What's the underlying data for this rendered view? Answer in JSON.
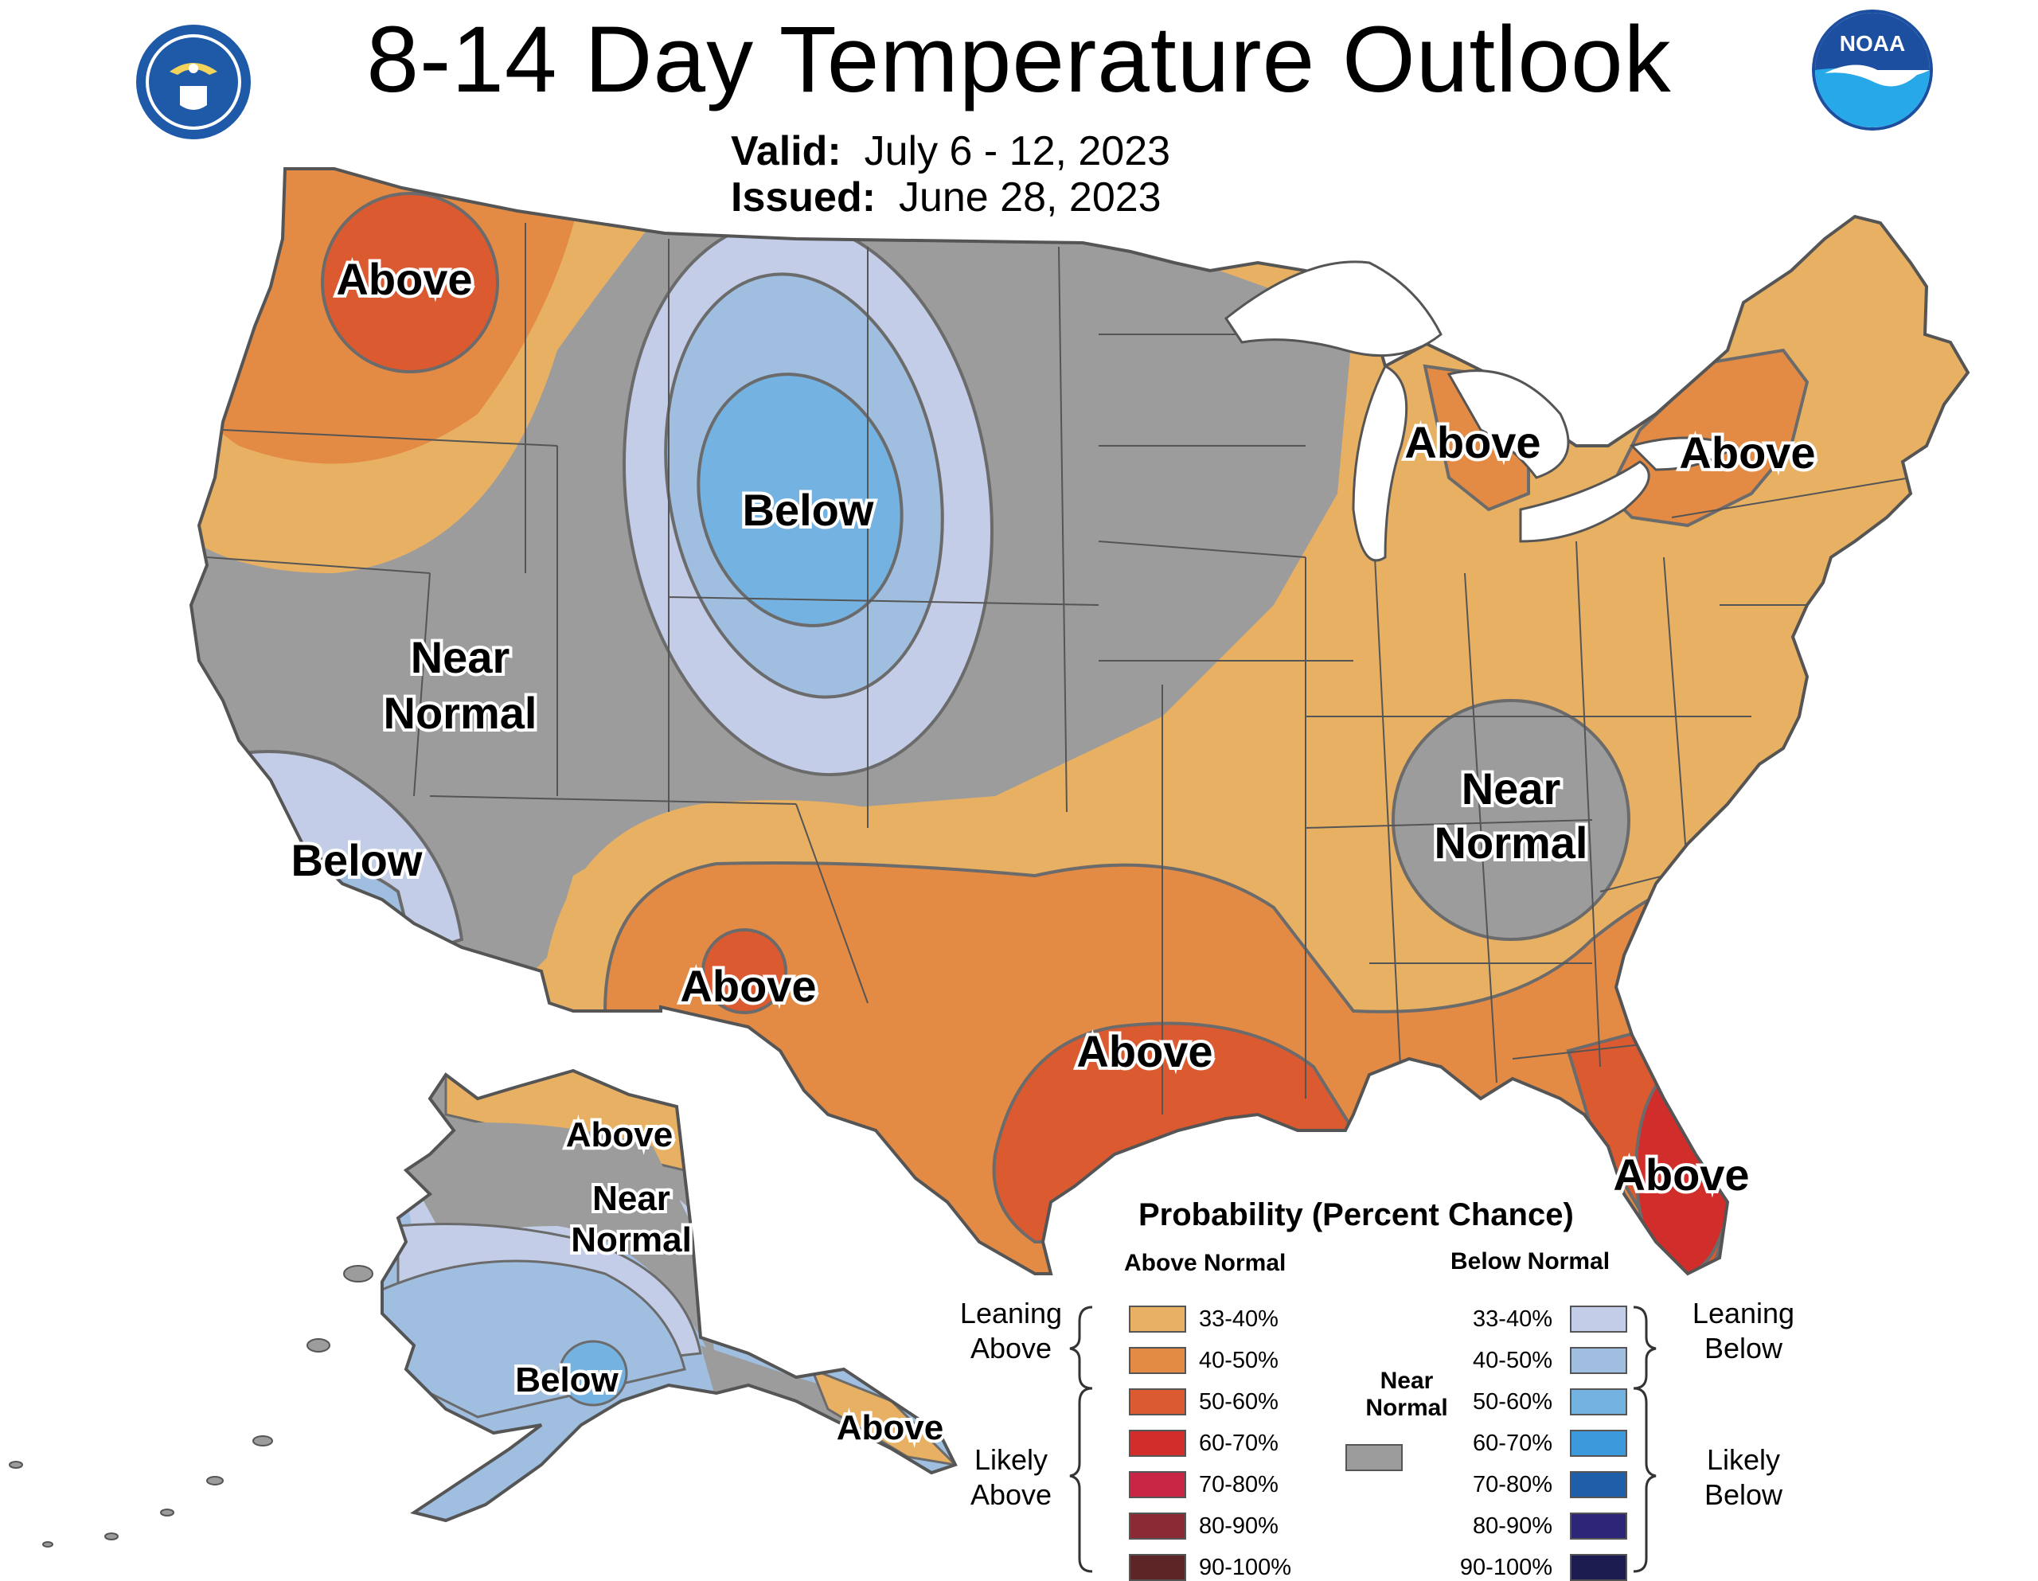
{
  "title": "8-14 Day Temperature Outlook",
  "valid_label": "Valid:",
  "valid_value": "July 6 - 12, 2023",
  "issued_label": "Issued:",
  "issued_value": "June 28, 2023",
  "logos": {
    "left": "department-of-commerce-seal",
    "right": "noaa-logo"
  },
  "map_labels": {
    "northwest": "Above",
    "north_central": "Below",
    "west_near_1": "Near",
    "west_near_2": "Normal",
    "southwest": "Below",
    "michigan": "Above",
    "new_york": "Above",
    "southeast_near_1": "Near",
    "southeast_near_2": "Normal",
    "new_mexico": "Above",
    "texas": "Above",
    "florida": "Above",
    "alaska_north": "Above",
    "alaska_near_1": "Near",
    "alaska_near_2": "Normal",
    "alaska_west": "Below",
    "alaska_panhandle": "Above"
  },
  "legend": {
    "title": "Probability (Percent Chance)",
    "above_header": "Above Normal",
    "below_header": "Below Normal",
    "near_header_1": "Near",
    "near_header_2": "Normal",
    "leaning_above_1": "Leaning",
    "leaning_above_2": "Above",
    "likely_above_1": "Likely",
    "likely_above_2": "Above",
    "leaning_below_1": "Leaning",
    "leaning_below_2": "Below",
    "likely_below_1": "Likely",
    "likely_below_2": "Below",
    "above": [
      {
        "label": "33-40%",
        "color": "#e8b063"
      },
      {
        "label": "40-50%",
        "color": "#e38a45"
      },
      {
        "label": "50-60%",
        "color": "#dc5a30"
      },
      {
        "label": "60-70%",
        "color": "#d12d2a"
      },
      {
        "label": "70-80%",
        "color": "#c92645"
      },
      {
        "label": "80-90%",
        "color": "#8a2a34"
      },
      {
        "label": "90-100%",
        "color": "#5c2626"
      }
    ],
    "below": [
      {
        "label": "33-40%",
        "color": "#c3cde7"
      },
      {
        "label": "40-50%",
        "color": "#9fbee0"
      },
      {
        "label": "50-60%",
        "color": "#74b2e2"
      },
      {
        "label": "60-70%",
        "color": "#3b99dc"
      },
      {
        "label": "70-80%",
        "color": "#1f5ea8"
      },
      {
        "label": "80-90%",
        "color": "#2c2578"
      },
      {
        "label": "90-100%",
        "color": "#1c1b4f"
      }
    ],
    "near_color": "#9c9c9c"
  }
}
